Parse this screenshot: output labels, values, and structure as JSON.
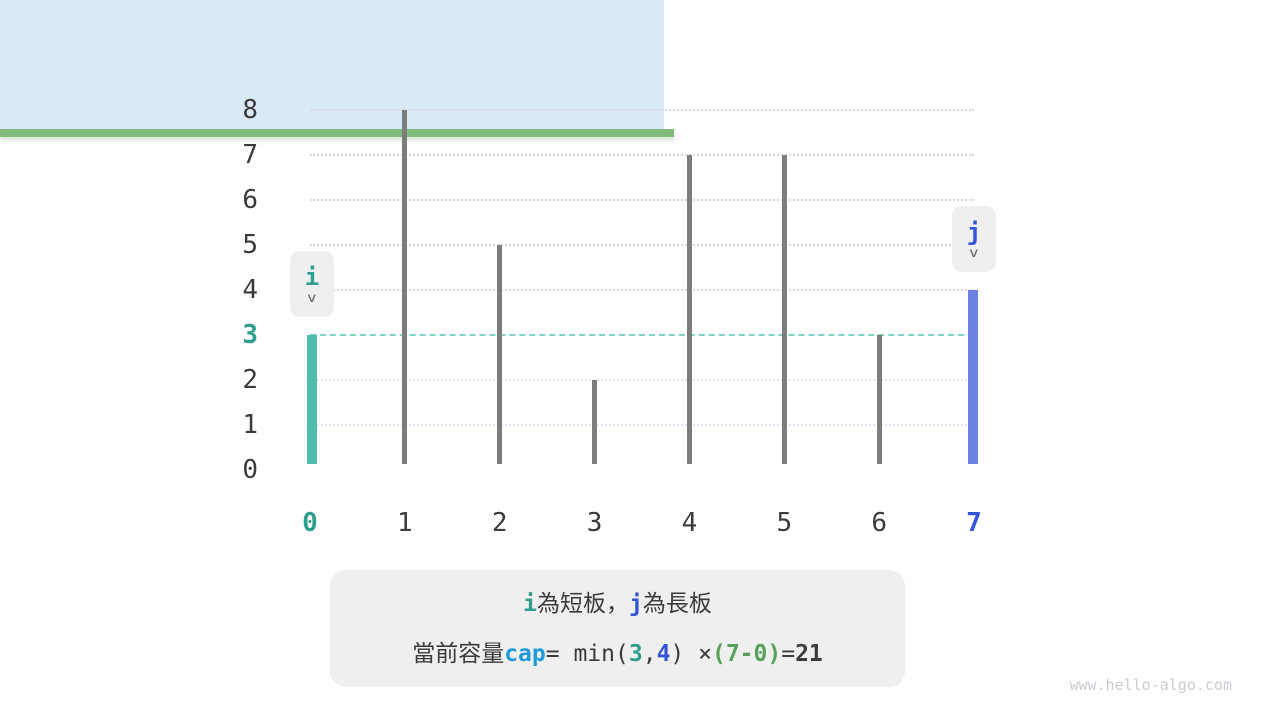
{
  "colors": {
    "teal_text": "#2e9e8f",
    "teal_bar": "#4dbcad",
    "water_line": "#7fd2c8",
    "blue_text": "#3254d5",
    "blue_bar": "#6c83e4",
    "cap_blue": "#209bd8",
    "green_text": "#57a25a",
    "green_base": "#82ba7c",
    "bar_gray": "#7d7d7d",
    "water_fill": "#d9eaf7",
    "grid_gray": "#d9d9d9",
    "grid_over_water": "#dfe8f0",
    "box_bg": "#efefef",
    "dark_text": "#3b3b3b",
    "chevron_gray": "#707070",
    "watermark_gray": "#c9cdd2"
  },
  "icons": {
    "chevron_down": "∨"
  },
  "chart_data": {
    "type": "bar",
    "x": [
      0,
      1,
      2,
      3,
      4,
      5,
      6,
      7
    ],
    "heights": [
      3,
      8,
      5,
      2,
      7,
      7,
      3,
      4
    ],
    "ylim": [
      0,
      8
    ],
    "yticks": [
      8,
      7,
      6,
      5,
      4,
      3,
      2,
      1,
      0
    ],
    "xticks": [
      0,
      1,
      2,
      3,
      4,
      5,
      6,
      7
    ],
    "grid": true,
    "legend": "none",
    "water": {
      "level": 3,
      "from_index": 0,
      "to_index": 7
    },
    "pointers": [
      {
        "label": "i",
        "index": 0,
        "height": 3,
        "color_role": "teal"
      },
      {
        "label": "j",
        "index": 7,
        "height": 4,
        "color_role": "blue"
      }
    ],
    "highlighted_yticks": [
      3
    ],
    "highlighted_xticks_teal": [
      0
    ],
    "highlighted_xticks_blue": [
      7
    ]
  },
  "caption": {
    "line1": [
      {
        "t": "i",
        "c": "teal",
        "b": true,
        "m": true
      },
      {
        "t": " 為短板，",
        "c": "dark",
        "b": false,
        "m": false
      },
      {
        "t": "j",
        "c": "blue",
        "b": true,
        "m": true
      },
      {
        "t": " 為長板",
        "c": "dark",
        "b": false,
        "m": false
      }
    ],
    "line2": [
      {
        "t": "當前容量 ",
        "c": "dark",
        "b": false,
        "m": false
      },
      {
        "t": "cap",
        "c": "cap",
        "b": true,
        "m": true
      },
      {
        "t": " = min(",
        "c": "dark",
        "b": false,
        "m": true
      },
      {
        "t": "3",
        "c": "teal",
        "b": true,
        "m": true
      },
      {
        "t": ", ",
        "c": "dark",
        "b": false,
        "m": true
      },
      {
        "t": "4",
        "c": "blue",
        "b": true,
        "m": true
      },
      {
        "t": ") × ",
        "c": "dark",
        "b": false,
        "m": true
      },
      {
        "t": "(7-0)",
        "c": "green",
        "b": true,
        "m": true
      },
      {
        "t": " = ",
        "c": "dark",
        "b": false,
        "m": true
      },
      {
        "t": "21",
        "c": "dark",
        "b": true,
        "m": true
      }
    ]
  },
  "watermark": "www.hello-algo.com"
}
